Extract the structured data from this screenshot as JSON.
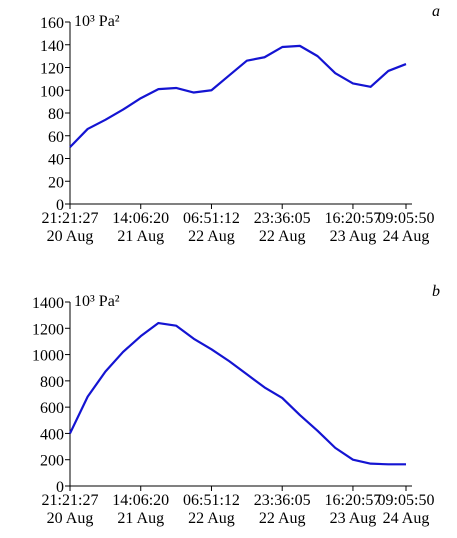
{
  "chart_data": [
    {
      "type": "line",
      "panel": "a",
      "y_label": "10³ Pa²",
      "categories": [
        "21:21:27\n20 Aug",
        null,
        null,
        null,
        "14:06:20\n21 Aug",
        null,
        null,
        null,
        "06:51:12\n22 Aug",
        null,
        null,
        null,
        "23:36:05\n22 Aug",
        null,
        null,
        null,
        "16:20:57\n23 Aug",
        null,
        null,
        "09:05:50\n24 Aug"
      ],
      "series": [
        {
          "color": "#1414d2",
          "values": [
            50,
            66,
            74,
            83,
            93,
            101,
            102,
            98,
            100,
            113,
            126,
            129,
            138,
            139,
            130,
            115,
            106,
            103,
            117,
            123
          ]
        }
      ],
      "ylim": [
        0,
        160
      ],
      "yticks": [
        0,
        20,
        40,
        60,
        80,
        100,
        120,
        140,
        160
      ]
    },
    {
      "type": "line",
      "panel": "b",
      "y_label": "10³ Pa²",
      "categories": [
        "21:21:27\n20 Aug",
        null,
        null,
        null,
        "14:06:20\n21 Aug",
        null,
        null,
        null,
        "06:51:12\n22 Aug",
        null,
        null,
        null,
        "23:36:05\n22 Aug",
        null,
        null,
        null,
        "16:20:57\n23 Aug",
        null,
        null,
        "09:05:50\n24 Aug"
      ],
      "series": [
        {
          "color": "#1414d2",
          "values": [
            400,
            680,
            870,
            1020,
            1140,
            1240,
            1220,
            1120,
            1040,
            950,
            850,
            750,
            670,
            540,
            420,
            290,
            200,
            170,
            165,
            165
          ]
        }
      ],
      "ylim": [
        0,
        1400
      ],
      "yticks": [
        0,
        200,
        400,
        600,
        800,
        1000,
        1200,
        1400
      ]
    }
  ]
}
